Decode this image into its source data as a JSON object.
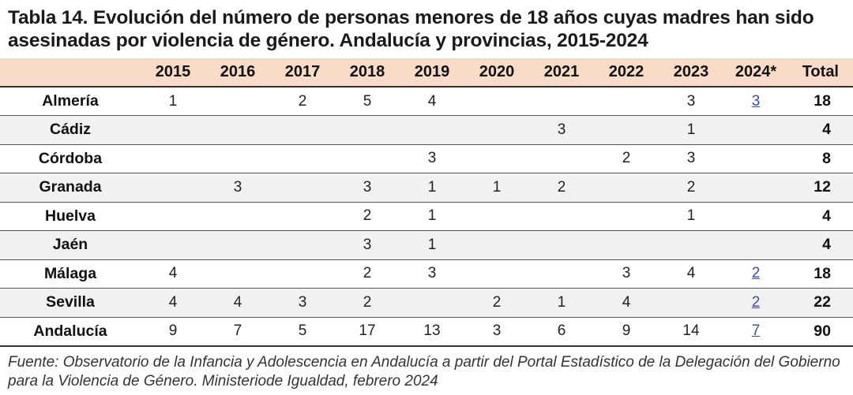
{
  "title": "Tabla 14. Evolución del número de personas menores de 18 años cuyas madres han sido asesinadas por violencia de género. Andalucía y provincias, 2015-2024",
  "table": {
    "headers": [
      "",
      "2015",
      "2016",
      "2017",
      "2018",
      "2019",
      "2020",
      "2021",
      "2022",
      "2023",
      "2024*",
      "Total"
    ],
    "rows": [
      {
        "province": "Almería",
        "values": [
          "1",
          "",
          "2",
          "5",
          "4",
          "",
          "",
          "",
          "3",
          "3",
          "18"
        ]
      },
      {
        "province": "Cádiz",
        "values": [
          "",
          "",
          "",
          "",
          "",
          "",
          "3",
          "",
          "1",
          "",
          "4"
        ]
      },
      {
        "province": "Córdoba",
        "values": [
          "",
          "",
          "",
          "",
          "3",
          "",
          "",
          "2",
          "3",
          "",
          "8"
        ]
      },
      {
        "province": "Granada",
        "values": [
          "",
          "3",
          "",
          "3",
          "1",
          "1",
          "2",
          "",
          "2",
          "",
          "12"
        ]
      },
      {
        "province": "Huelva",
        "values": [
          "",
          "",
          "",
          "2",
          "1",
          "",
          "",
          "",
          "1",
          "",
          "4"
        ]
      },
      {
        "province": "Jaén",
        "values": [
          "",
          "",
          "",
          "3",
          "1",
          "",
          "",
          "",
          "",
          "",
          "4"
        ]
      },
      {
        "province": "Málaga",
        "values": [
          "4",
          "",
          "",
          "2",
          "3",
          "",
          "",
          "3",
          "4",
          "2",
          "18"
        ]
      },
      {
        "province": "Sevilla",
        "values": [
          "4",
          "4",
          "3",
          "2",
          "",
          "2",
          "1",
          "4",
          "",
          "2",
          "22"
        ]
      },
      {
        "province": "Andalucía",
        "values": [
          "9",
          "7",
          "5",
          "17",
          "13",
          "3",
          "6",
          "9",
          "14",
          "7",
          "90"
        ]
      }
    ]
  },
  "source": "Fuente: Observatorio de la Infancia y Adolescencia en Andalucía a partir del Portal Estadístico de la Delegación del Gobierno para la Violencia de Género. Ministeriode Igualdad, febrero 2024",
  "colors": {
    "header_bg": "#f9dcc7",
    "row_shade": "#f1f1f1",
    "link": "#3b4fa8"
  }
}
